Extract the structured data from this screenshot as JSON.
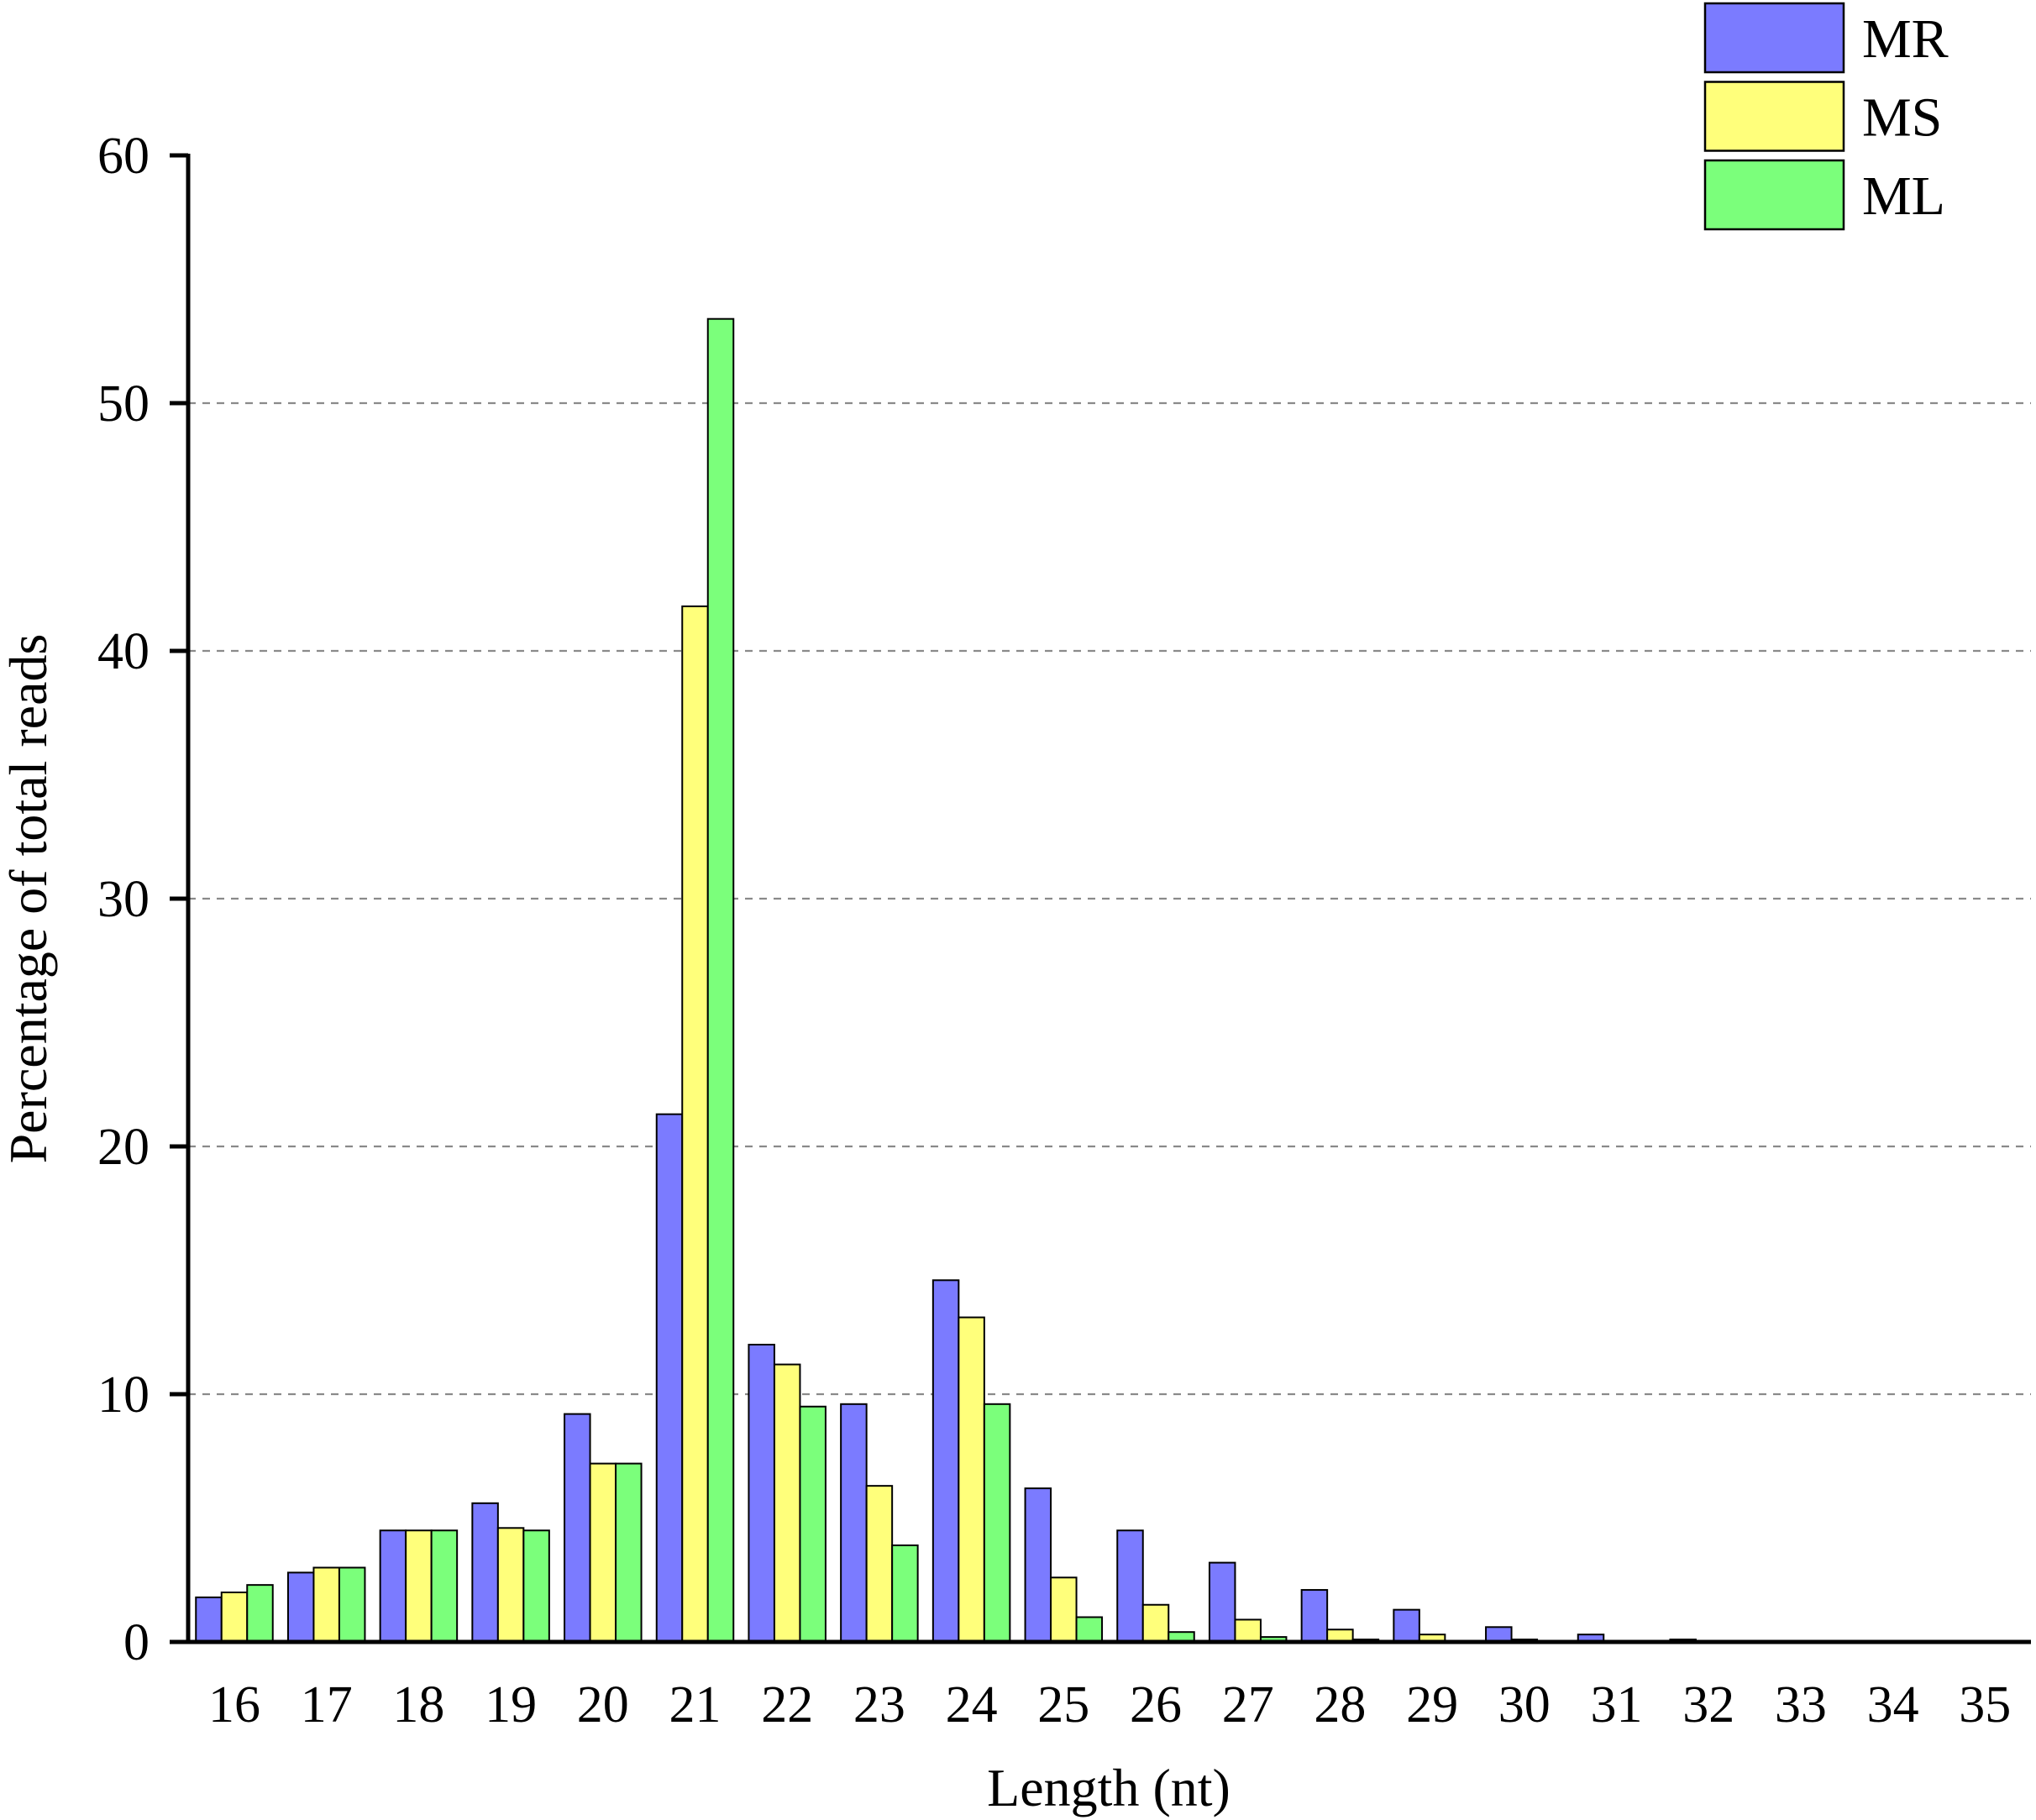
{
  "chart_data": {
    "type": "bar",
    "title": "",
    "xlabel": "Length (nt)",
    "ylabel": "Percentage of total reads",
    "ylim": [
      0,
      60
    ],
    "yticks": [
      0,
      10,
      20,
      30,
      40,
      50,
      60
    ],
    "grid": "horizontal dashed",
    "legend_position": "top-right",
    "categories": [
      "16",
      "17",
      "18",
      "19",
      "20",
      "21",
      "22",
      "23",
      "24",
      "25",
      "26",
      "27",
      "28",
      "29",
      "30",
      "31",
      "32",
      "33",
      "34",
      "35"
    ],
    "series": [
      {
        "name": "MR",
        "color": "#7b7bff",
        "values": [
          1.8,
          2.8,
          4.5,
          5.6,
          9.2,
          21.3,
          12.0,
          9.6,
          14.6,
          6.2,
          4.5,
          3.2,
          2.1,
          1.3,
          0.6,
          0.3,
          0.1,
          0,
          0,
          0
        ]
      },
      {
        "name": "MS",
        "color": "#ffff7b",
        "values": [
          2.0,
          3.0,
          4.5,
          4.6,
          7.2,
          41.8,
          11.2,
          6.3,
          13.1,
          2.6,
          1.5,
          0.9,
          0.5,
          0.3,
          0.1,
          0.05,
          0.02,
          0,
          0,
          0
        ]
      },
      {
        "name": "ML",
        "color": "#7bff7b",
        "values": [
          2.3,
          3.0,
          4.5,
          4.5,
          7.2,
          53.4,
          9.5,
          3.9,
          9.6,
          1.0,
          0.4,
          0.2,
          0.1,
          0.05,
          0.02,
          0.01,
          0,
          0,
          0,
          0
        ]
      }
    ]
  }
}
